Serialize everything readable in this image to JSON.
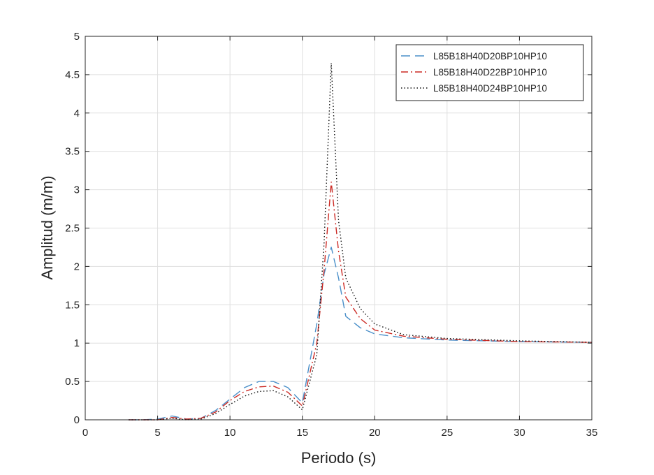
{
  "chart_data": {
    "type": "line",
    "title": "",
    "xlabel": "Periodo (s)",
    "ylabel": "Amplitud (m/m)",
    "xlim": [
      0,
      35
    ],
    "ylim": [
      0,
      5
    ],
    "xticks": [
      "0",
      "5",
      "10",
      "15",
      "20",
      "25",
      "30",
      "35"
    ],
    "yticks": [
      "0",
      "0.5",
      "1",
      "1.5",
      "2",
      "2.5",
      "3",
      "3.5",
      "4",
      "4.5",
      "5"
    ],
    "grid": true,
    "legend_position": "top-right",
    "x": [
      3,
      4,
      5,
      6,
      7,
      8,
      9,
      10,
      11,
      12,
      13,
      14,
      15,
      16,
      16.5,
      17,
      17.5,
      18,
      19,
      20,
      22,
      25,
      30,
      35
    ],
    "series": [
      {
        "name": "L85B18H40D20BP10HP10",
        "color": "#4a8fc9",
        "dash": "dashed",
        "values": [
          0,
          0,
          0.01,
          0.05,
          0.01,
          0.02,
          0.12,
          0.27,
          0.42,
          0.5,
          0.5,
          0.42,
          0.22,
          1.25,
          1.9,
          2.25,
          1.85,
          1.35,
          1.2,
          1.12,
          1.07,
          1.04,
          1.02,
          1.01
        ]
      },
      {
        "name": "L85B18H40D22BP10HP10",
        "color": "#cc2a24",
        "dash": "dashdot",
        "values": [
          0,
          0,
          0,
          0.03,
          0.01,
          0.02,
          0.1,
          0.25,
          0.37,
          0.43,
          0.44,
          0.36,
          0.18,
          1.0,
          1.95,
          3.1,
          2.2,
          1.6,
          1.32,
          1.17,
          1.09,
          1.05,
          1.02,
          1.01
        ]
      },
      {
        "name": "L85B18H40D24BP10HP10",
        "color": "#111111",
        "dash": "dotted",
        "values": [
          0,
          0,
          0,
          0.02,
          0,
          0.01,
          0.08,
          0.2,
          0.31,
          0.37,
          0.38,
          0.3,
          0.13,
          0.85,
          2.3,
          4.65,
          2.6,
          1.85,
          1.45,
          1.25,
          1.11,
          1.06,
          1.03,
          1.01
        ]
      }
    ]
  }
}
